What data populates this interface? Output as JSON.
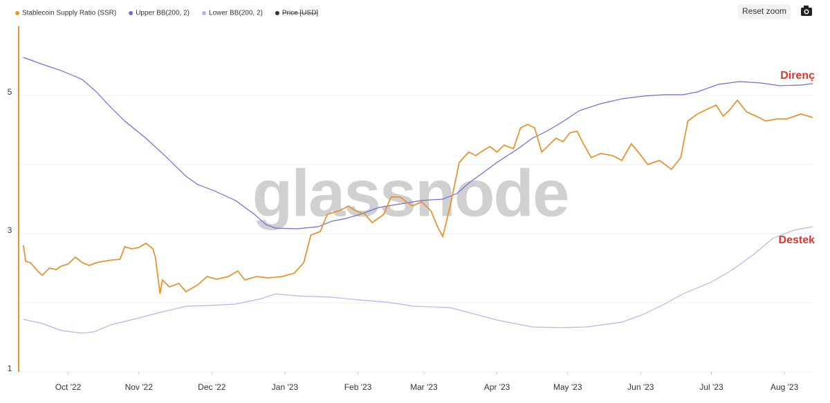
{
  "chart_data": {
    "type": "line",
    "series": [
      {
        "name": "Stablecoin Supply Ratio (SSR)",
        "color": "#e8932f",
        "x": [
          2,
          3,
          5,
          8,
          10,
          13,
          16,
          18,
          21,
          24,
          27,
          30,
          33,
          36,
          40,
          43,
          45,
          48,
          51,
          54,
          57,
          58,
          60,
          61,
          64,
          68,
          71,
          76,
          80,
          84,
          89,
          93,
          96,
          101,
          106,
          112,
          117,
          121,
          124,
          128,
          131,
          136,
          140,
          143,
          147,
          150,
          155,
          158,
          162,
          167,
          171,
          175,
          178,
          180,
          183,
          187,
          191,
          194,
          197,
          200,
          203,
          206,
          210,
          213,
          216,
          219,
          222,
          225,
          228,
          231,
          234,
          237,
          240,
          243,
          247,
          252,
          256,
          260,
          263,
          267,
          272,
          277,
          281,
          284,
          288,
          291,
          296,
          299,
          302,
          305,
          309,
          313,
          317,
          322,
          326,
          332,
          337
        ],
        "values": [
          2.83,
          2.6,
          2.58,
          2.46,
          2.4,
          2.5,
          2.48,
          2.53,
          2.56,
          2.66,
          2.58,
          2.54,
          2.58,
          2.6,
          2.62,
          2.63,
          2.81,
          2.78,
          2.8,
          2.86,
          2.78,
          2.66,
          2.13,
          2.33,
          2.23,
          2.28,
          2.16,
          2.26,
          2.38,
          2.34,
          2.38,
          2.46,
          2.33,
          2.38,
          2.36,
          2.38,
          2.43,
          2.58,
          2.98,
          3.03,
          3.28,
          3.33,
          3.4,
          3.33,
          3.28,
          3.16,
          3.28,
          3.53,
          3.53,
          3.4,
          3.46,
          3.33,
          3.08,
          2.96,
          3.38,
          4.03,
          4.18,
          4.13,
          4.2,
          4.26,
          4.18,
          4.28,
          4.23,
          4.53,
          4.58,
          4.53,
          4.18,
          4.28,
          4.38,
          4.33,
          4.46,
          4.48,
          4.28,
          4.1,
          4.16,
          4.13,
          4.06,
          4.3,
          4.18,
          4.0,
          4.06,
          3.93,
          4.1,
          4.63,
          4.73,
          4.78,
          4.86,
          4.7,
          4.8,
          4.93,
          4.76,
          4.7,
          4.63,
          4.66,
          4.66,
          4.73,
          4.68
        ]
      },
      {
        "name": "Upper BB(200, 2)",
        "color": "#6f6bd8",
        "x": [
          2,
          10,
          18,
          27,
          33,
          39,
          45,
          54,
          62,
          71,
          76,
          83,
          92,
          100,
          105,
          109,
          118,
          127,
          133,
          139,
          145,
          153,
          162,
          171,
          180,
          186,
          191,
          197,
          203,
          212,
          218,
          224,
          230,
          238,
          247,
          256,
          265,
          274,
          282,
          288,
          297,
          306,
          315,
          323,
          332,
          337
        ],
        "values": [
          5.55,
          5.45,
          5.36,
          5.23,
          5.05,
          4.83,
          4.63,
          4.38,
          4.13,
          3.83,
          3.71,
          3.62,
          3.48,
          3.28,
          3.13,
          3.08,
          3.07,
          3.1,
          3.18,
          3.22,
          3.28,
          3.38,
          3.43,
          3.48,
          3.5,
          3.58,
          3.73,
          3.88,
          4.03,
          4.23,
          4.38,
          4.48,
          4.6,
          4.78,
          4.88,
          4.95,
          4.99,
          5.01,
          5.01,
          5.05,
          5.16,
          5.2,
          5.18,
          5.14,
          5.15,
          5.17
        ]
      },
      {
        "name": "Lower BB(200, 2)",
        "color": "#b6b4ee",
        "x": [
          2,
          10,
          18,
          27,
          32,
          39,
          51,
          60,
          71,
          80,
          92,
          103,
          109,
          118,
          133,
          145,
          156,
          168,
          183,
          191,
          203,
          218,
          230,
          241,
          256,
          265,
          274,
          282,
          294,
          303,
          312,
          320,
          329,
          337
        ],
        "values": [
          1.76,
          1.7,
          1.6,
          1.56,
          1.58,
          1.68,
          1.78,
          1.86,
          1.95,
          1.96,
          1.98,
          2.06,
          2.13,
          2.1,
          2.08,
          2.04,
          2.01,
          1.95,
          1.93,
          1.86,
          1.75,
          1.65,
          1.64,
          1.65,
          1.72,
          1.83,
          1.98,
          2.13,
          2.3,
          2.48,
          2.7,
          2.93,
          3.05,
          3.1
        ]
      }
    ],
    "hidden_series": [
      {
        "name": "Price [USD]",
        "color": "#333333"
      }
    ],
    "xlim": [
      0,
      337
    ],
    "xticks": [
      {
        "value": 21,
        "label": "Oct '22"
      },
      {
        "value": 51,
        "label": "Nov '22"
      },
      {
        "value": 82,
        "label": "Dec '22"
      },
      {
        "value": 113,
        "label": "Jan '23"
      },
      {
        "value": 144,
        "label": "Feb '23"
      },
      {
        "value": 172,
        "label": "Mar '23"
      },
      {
        "value": 203,
        "label": "Apr '23"
      },
      {
        "value": 233,
        "label": "May '23"
      },
      {
        "value": 264,
        "label": "Jun '23"
      },
      {
        "value": 294,
        "label": "Jul '23"
      },
      {
        "value": 325,
        "label": "Aug '23"
      }
    ],
    "ylim": [
      1,
      6
    ],
    "yticks": [
      1,
      3,
      5
    ],
    "ygrid": [
      2,
      4
    ],
    "grid": true,
    "annotations": [
      "Direnç",
      "Destek"
    ],
    "watermark": "glassnode",
    "button": "Reset zoom"
  }
}
